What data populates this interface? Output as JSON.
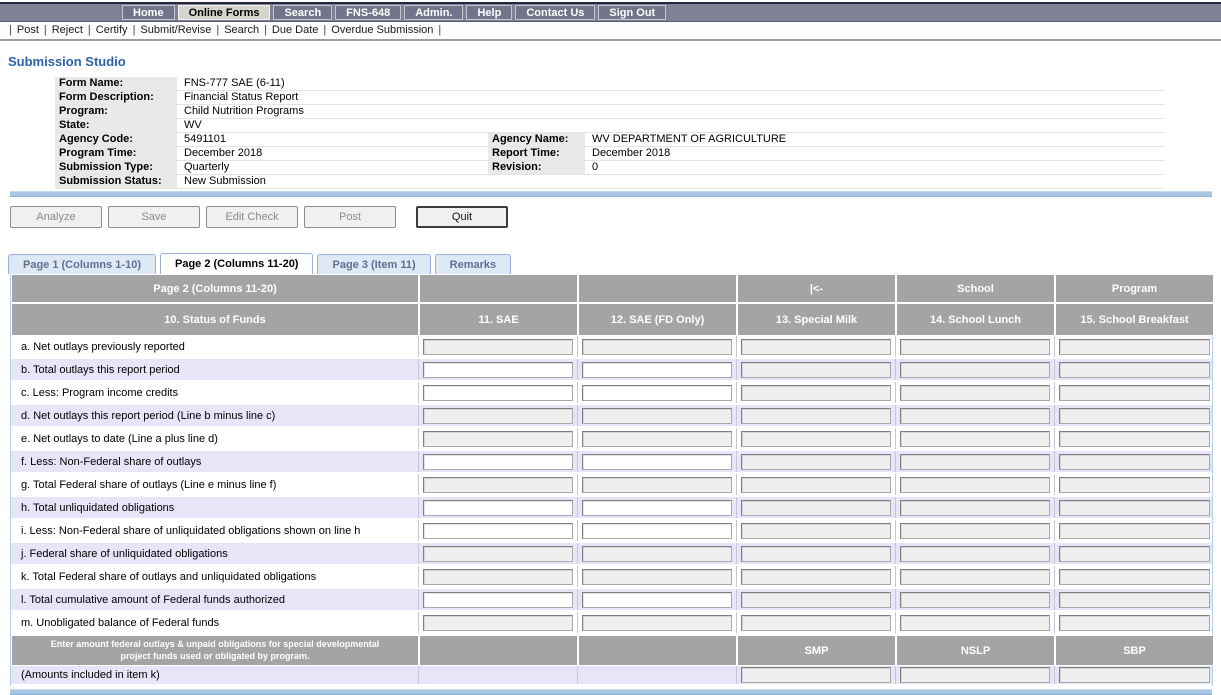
{
  "page_title": "Submission Studio",
  "colors": {
    "navbar_bg": "#7e8294",
    "navbar_active_bg": "#d6d4cc",
    "accent_blue_bar": "#a9c6e3",
    "title_blue": "#2c64a8",
    "table_header_gray": "#a4a4a4",
    "row_alt_lavender": "#e6e6f8",
    "readonly_field_gray": "#efefef",
    "tab_inactive_bg": "#dfe8f5"
  },
  "topnav": {
    "items": [
      {
        "label": "Home",
        "active": false
      },
      {
        "label": "Online Forms",
        "active": true
      },
      {
        "label": "Search",
        "active": false
      },
      {
        "label": "FNS-648",
        "active": false
      },
      {
        "label": "Admin.",
        "active": false
      },
      {
        "label": "Help",
        "active": false
      },
      {
        "label": "Contact Us",
        "active": false
      },
      {
        "label": "Sign Out",
        "active": false
      }
    ]
  },
  "actionbar": {
    "items": [
      "Post",
      "Reject",
      "Certify",
      "Submit/Revise",
      "Search",
      "Due Date",
      "Overdue Submission"
    ]
  },
  "metadata": {
    "rows": [
      {
        "label": "Form Name:",
        "value": "FNS-777 SAE (6-11)"
      },
      {
        "label": "Form Description:",
        "value": "Financial Status Report"
      },
      {
        "label": "Program:",
        "value": "Child Nutrition Programs"
      },
      {
        "label": "State:",
        "value": "WV"
      },
      {
        "label": "Agency Code:",
        "value": "5491101",
        "label2": "Agency Name:",
        "value2": "WV DEPARTMENT OF AGRICULTURE"
      },
      {
        "label": "Program Time:",
        "value": "December 2018",
        "label2": "Report Time:",
        "value2": "December 2018"
      },
      {
        "label": "Submission Type:",
        "value": "Quarterly",
        "label2": "Revision:",
        "value2": "0"
      },
      {
        "label": "Submission Status:",
        "value": "New Submission"
      }
    ]
  },
  "toolbar": {
    "buttons": [
      {
        "label": "Analyze",
        "enabled": false
      },
      {
        "label": "Save",
        "enabled": false
      },
      {
        "label": "Edit Check",
        "enabled": false
      },
      {
        "label": "Post",
        "enabled": false
      },
      {
        "label": "Quit",
        "enabled": true
      }
    ]
  },
  "tabs": [
    {
      "label": "Page 1 (Columns 1-10)",
      "active": false
    },
    {
      "label": "Page 2 (Columns 11-20)",
      "active": true
    },
    {
      "label": "Page 3 (Item 11)",
      "active": false
    },
    {
      "label": "Remarks",
      "active": false
    }
  ],
  "table": {
    "group_header": [
      "Page 2 (Columns 11-20)",
      "",
      "",
      "|<-",
      "School",
      "Program"
    ],
    "column_header": [
      "10. Status of Funds",
      "11. SAE",
      "12. SAE (FD Only)",
      "13. Special Milk",
      "14. School Lunch",
      "15. School Breakfast"
    ],
    "rows": [
      {
        "label": "a. Net outlays previously reported",
        "cells": [
          "readonly",
          "readonly",
          "readonly",
          "readonly",
          "readonly"
        ]
      },
      {
        "label": "b. Total outlays this report period",
        "cells": [
          "editable",
          "editable",
          "readonly",
          "readonly",
          "readonly"
        ]
      },
      {
        "label": "c. Less: Program income credits",
        "cells": [
          "editable",
          "editable",
          "readonly",
          "readonly",
          "readonly"
        ]
      },
      {
        "label": "d. Net outlays this report period (Line b minus line c)",
        "cells": [
          "readonly",
          "readonly",
          "readonly",
          "readonly",
          "readonly"
        ]
      },
      {
        "label": "e. Net outlays to date (Line a plus line d)",
        "cells": [
          "readonly",
          "readonly",
          "readonly",
          "readonly",
          "readonly"
        ]
      },
      {
        "label": "f. Less: Non-Federal share of outlays",
        "cells": [
          "editable",
          "editable",
          "readonly",
          "readonly",
          "readonly"
        ]
      },
      {
        "label": "g. Total Federal share of outlays (Line e minus line f)",
        "cells": [
          "readonly",
          "readonly",
          "readonly",
          "readonly",
          "readonly"
        ]
      },
      {
        "label": "h. Total unliquidated obligations",
        "cells": [
          "editable",
          "editable",
          "readonly",
          "readonly",
          "readonly"
        ]
      },
      {
        "label": "i. Less: Non-Federal share of unliquidated obligations shown on line h",
        "cells": [
          "editable",
          "editable",
          "readonly",
          "readonly",
          "readonly"
        ]
      },
      {
        "label": "j. Federal share of unliquidated obligations",
        "cells": [
          "readonly",
          "readonly",
          "readonly",
          "readonly",
          "readonly"
        ]
      },
      {
        "label": "k. Total Federal share of outlays and unliquidated obligations",
        "cells": [
          "readonly",
          "readonly",
          "readonly",
          "readonly",
          "readonly"
        ]
      },
      {
        "label": "l. Total cumulative amount of Federal funds authorized",
        "cells": [
          "editable",
          "editable",
          "readonly",
          "readonly",
          "readonly"
        ]
      },
      {
        "label": "m. Unobligated balance of Federal funds",
        "cells": [
          "readonly",
          "readonly",
          "readonly",
          "readonly",
          "readonly"
        ]
      }
    ],
    "special_header": {
      "label": "Enter amount federal outlays & unpaid obligations for special developmental project funds used or obligated by program.",
      "columns": [
        "",
        "",
        "SMP",
        "NSLP",
        "SBP"
      ]
    },
    "special_row": {
      "label": "(Amounts included in item k)",
      "cells": [
        "none",
        "none",
        "readonly",
        "readonly",
        "readonly"
      ]
    },
    "field_values": ""
  }
}
